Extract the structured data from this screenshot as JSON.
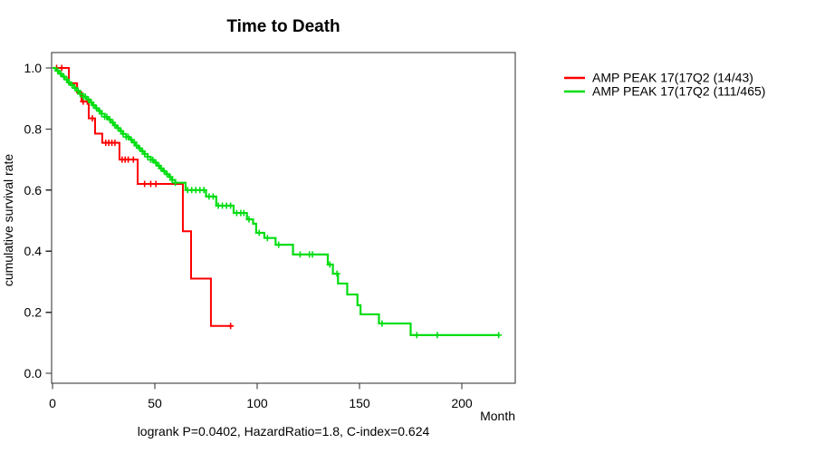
{
  "title": "Time to Death",
  "axes": {
    "x_label": "Month",
    "y_label": "cumulative survival rate",
    "x_ticks": [
      0,
      50,
      100,
      150,
      200
    ],
    "y_ticks": [
      "0.0",
      "0.2",
      "0.4",
      "0.6",
      "0.8",
      "1.0"
    ]
  },
  "legend": [
    {
      "label": "AMP PEAK 17(17Q2 (14/43)",
      "color": "#ff0000"
    },
    {
      "label": "AMP PEAK 17(17Q2 (111/465)",
      "color": "#00dd11"
    }
  ],
  "footnote": "logrank P=0.0402, HazardRatio=1.8, C-index=0.624",
  "colors": {
    "red": "#ff0000",
    "green": "#00dd11",
    "frame": "#2b2b2b"
  },
  "chart_data": {
    "type": "line",
    "subtype": "kaplan-meier-step",
    "title": "Time to Death",
    "xlabel": "Month",
    "ylabel": "cumulative survival rate",
    "xlim": [
      0,
      226
    ],
    "ylim": [
      0.0,
      1.0
    ],
    "grid": false,
    "legend_position": "right-outside",
    "series": [
      {
        "name": "AMP PEAK 17(17Q2 (14/43)",
        "color": "#ff0000",
        "stroke_width": 2,
        "end_month": 88,
        "steps": [
          [
            0,
            1.0
          ],
          [
            8,
            0.95
          ],
          [
            12,
            0.92
          ],
          [
            14.2,
            0.89
          ],
          [
            17.7,
            0.835
          ],
          [
            20.8,
            0.785
          ],
          [
            24.3,
            0.755
          ],
          [
            32.7,
            0.7
          ],
          [
            41.6,
            0.62
          ],
          [
            63.7,
            0.465
          ],
          [
            67.7,
            0.31
          ],
          [
            77.4,
            0.155
          ]
        ],
        "censor_months": [
          2,
          4.5,
          15,
          17,
          19.5,
          26,
          27.5,
          29,
          30.5,
          34,
          35.5,
          37,
          39.5,
          45,
          48,
          50.5,
          87
        ]
      },
      {
        "name": "AMP PEAK 17(17Q2 (111/465)",
        "color": "#00dd11",
        "stroke_width": 2.2,
        "end_month": 218,
        "steps": [
          [
            0,
            1.0
          ],
          [
            1.5,
            0.991
          ],
          [
            3,
            0.981
          ],
          [
            4.5,
            0.972
          ],
          [
            6,
            0.962
          ],
          [
            7.5,
            0.953
          ],
          [
            9,
            0.944
          ],
          [
            10.5,
            0.934
          ],
          [
            12,
            0.925
          ],
          [
            13.5,
            0.915
          ],
          [
            15,
            0.906
          ],
          [
            16.5,
            0.897
          ],
          [
            18,
            0.887
          ],
          [
            19.5,
            0.878
          ],
          [
            21,
            0.868
          ],
          [
            22.5,
            0.859
          ],
          [
            24,
            0.85
          ],
          [
            25.5,
            0.84
          ],
          [
            27,
            0.831
          ],
          [
            28.5,
            0.821
          ],
          [
            30,
            0.812
          ],
          [
            31.5,
            0.803
          ],
          [
            33,
            0.793
          ],
          [
            34.5,
            0.784
          ],
          [
            36,
            0.774
          ],
          [
            37.5,
            0.765
          ],
          [
            39,
            0.756
          ],
          [
            40.5,
            0.746
          ],
          [
            42,
            0.737
          ],
          [
            43.5,
            0.727
          ],
          [
            45,
            0.718
          ],
          [
            46.5,
            0.709
          ],
          [
            48,
            0.699
          ],
          [
            49.5,
            0.69
          ],
          [
            51,
            0.68
          ],
          [
            52.5,
            0.671
          ],
          [
            54,
            0.662
          ],
          [
            55.5,
            0.652
          ],
          [
            57,
            0.643
          ],
          [
            58.5,
            0.633
          ],
          [
            60,
            0.624
          ],
          [
            65,
            0.6
          ],
          [
            75,
            0.579
          ],
          [
            80,
            0.549
          ],
          [
            88.5,
            0.525
          ],
          [
            95,
            0.504
          ],
          [
            98,
            0.49
          ],
          [
            99.5,
            0.46
          ],
          [
            103.5,
            0.443
          ],
          [
            109,
            0.421
          ],
          [
            117.5,
            0.389
          ],
          [
            134.5,
            0.356
          ],
          [
            137,
            0.326
          ],
          [
            139.5,
            0.294
          ],
          [
            144,
            0.258
          ],
          [
            149,
            0.223
          ],
          [
            150.5,
            0.193
          ],
          [
            159.5,
            0.163
          ],
          [
            175,
            0.125
          ]
        ],
        "censor_months": [
          2.5,
          4,
          5.5,
          7,
          8,
          9.5,
          11,
          12.5,
          13.5,
          15,
          16,
          17.5,
          19,
          20,
          21.5,
          23,
          24,
          25.5,
          26.5,
          28,
          29.5,
          30.5,
          32,
          33.5,
          34.5,
          36,
          37,
          38.5,
          40,
          41,
          42.5,
          44,
          45,
          46.5,
          48,
          49,
          50.5,
          52,
          53,
          54.5,
          56,
          57.5,
          58.5,
          60,
          66,
          68,
          70,
          72,
          74,
          76.5,
          78.5,
          81,
          83,
          85,
          87,
          90,
          92,
          93.5,
          96,
          101,
          105,
          110.5,
          121,
          125.5,
          127,
          135.5,
          139,
          161,
          178,
          188,
          218
        ]
      }
    ]
  }
}
